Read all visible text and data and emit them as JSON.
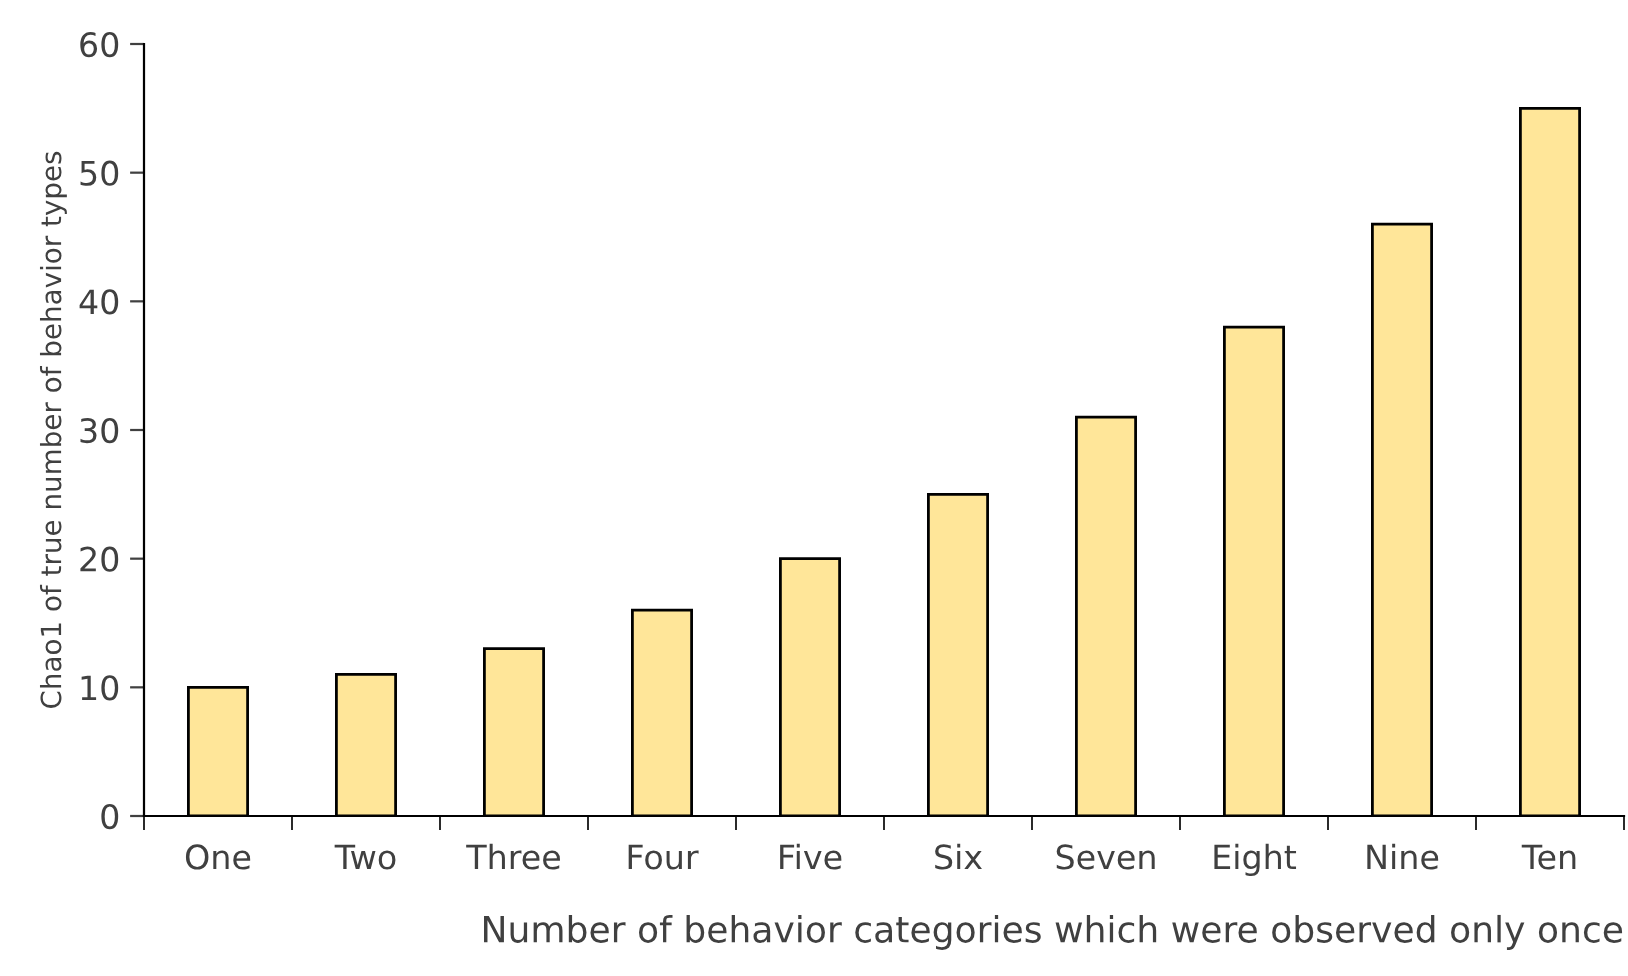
{
  "chart_data": {
    "type": "bar",
    "xlabel": "Number of behavior categories which were observed only once",
    "ylabel": "Chao1 of true number of behavior types",
    "categories": [
      "One",
      "Two",
      "Three",
      "Four",
      "Five",
      "Six",
      "Seven",
      "Eight",
      "Nine",
      "Ten"
    ],
    "values": [
      10,
      11,
      13,
      16,
      20,
      25,
      31,
      38,
      46,
      55
    ],
    "color": "#ffe699",
    "ylim": [
      0,
      60
    ],
    "yticks": [
      0,
      10,
      20,
      30,
      40,
      50,
      60
    ],
    "grid": false,
    "legend": false
  }
}
